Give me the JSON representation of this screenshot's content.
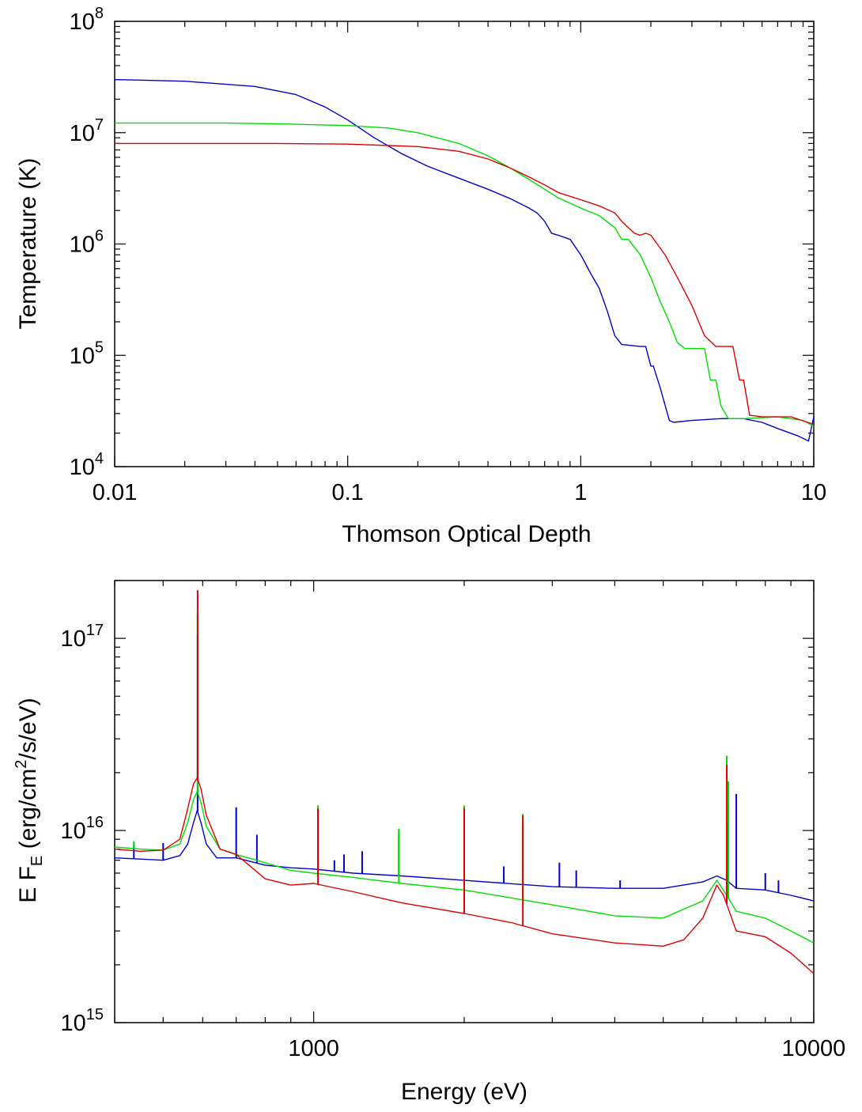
{
  "chart_data": [
    {
      "type": "line",
      "xlabel": "Thomson Optical Depth",
      "ylabel": "Temperature (K)",
      "xscale": "log",
      "yscale": "log",
      "xlim": [
        0.01,
        10
      ],
      "ylim": [
        10000,
        100000000
      ],
      "x_ticks": [
        {
          "value": 0.01,
          "label": "0.01"
        },
        {
          "value": 0.1,
          "label": "0.1"
        },
        {
          "value": 1,
          "label": "1"
        },
        {
          "value": 10,
          "label": "10"
        }
      ],
      "y_ticks": [
        {
          "value": 10000,
          "base": "10",
          "exp": "4"
        },
        {
          "value": 100000,
          "base": "10",
          "exp": "5"
        },
        {
          "value": 1000000,
          "base": "10",
          "exp": "6"
        },
        {
          "value": 10000000,
          "base": "10",
          "exp": "7"
        },
        {
          "value": 100000000,
          "base": "10",
          "exp": "8"
        }
      ],
      "grid": false,
      "legend": "none",
      "series": [
        {
          "color": "#0000cc",
          "points": [
            [
              0.01,
              30000000.0
            ],
            [
              0.02,
              29000000.0
            ],
            [
              0.04,
              26000000.0
            ],
            [
              0.06,
              22000000.0
            ],
            [
              0.08,
              17000000.0
            ],
            [
              0.1,
              13000000.0
            ],
            [
              0.13,
              9000000.0
            ],
            [
              0.17,
              6500000.0
            ],
            [
              0.22,
              5000000.0
            ],
            [
              0.3,
              3900000.0
            ],
            [
              0.4,
              3100000.0
            ],
            [
              0.5,
              2550000.0
            ],
            [
              0.6,
              2100000.0
            ],
            [
              0.65,
              1900000.0
            ],
            [
              0.7,
              1600000.0
            ],
            [
              0.75,
              1250000.0
            ],
            [
              0.8,
              1200000.0
            ],
            [
              0.9,
              1100000.0
            ],
            [
              1.0,
              800000.0
            ],
            [
              1.1,
              550000.0
            ],
            [
              1.2,
              400000.0
            ],
            [
              1.3,
              250000.0
            ],
            [
              1.4,
              150000.0
            ],
            [
              1.5,
              125000.0
            ],
            [
              1.8,
              120000.0
            ],
            [
              1.9,
              120000.0
            ],
            [
              2.0,
              80000.0
            ],
            [
              2.05,
              80000.0
            ],
            [
              2.2,
              50000.0
            ],
            [
              2.4,
              26000.0
            ],
            [
              2.5,
              25000.0
            ],
            [
              3.0,
              26000.0
            ],
            [
              4.0,
              27000.0
            ],
            [
              5.0,
              27000.0
            ],
            [
              6.0,
              25000.0
            ],
            [
              7.0,
              22000.0
            ],
            [
              8.5,
              19000.0
            ],
            [
              9.5,
              17000.0
            ],
            [
              10,
              28000.0
            ]
          ]
        },
        {
          "color": "#00dd00",
          "points": [
            [
              0.01,
              12200000.0
            ],
            [
              0.03,
              12200000.0
            ],
            [
              0.05,
              12000000.0
            ],
            [
              0.1,
              11600000.0
            ],
            [
              0.15,
              11000000.0
            ],
            [
              0.2,
              10000000.0
            ],
            [
              0.3,
              8000000.0
            ],
            [
              0.4,
              6200000.0
            ],
            [
              0.5,
              4800000.0
            ],
            [
              0.6,
              3800000.0
            ],
            [
              0.7,
              3100000.0
            ],
            [
              0.8,
              2600000.0
            ],
            [
              1.0,
              2100000.0
            ],
            [
              1.2,
              1800000.0
            ],
            [
              1.4,
              1400000.0
            ],
            [
              1.5,
              1100000.0
            ],
            [
              1.6,
              1100000.0
            ],
            [
              1.8,
              800000.0
            ],
            [
              2.0,
              500000.0
            ],
            [
              2.2,
              300000.0
            ],
            [
              2.4,
              200000.0
            ],
            [
              2.6,
              130000.0
            ],
            [
              2.8,
              115000.0
            ],
            [
              3.2,
              115000.0
            ],
            [
              3.4,
              115000.0
            ],
            [
              3.6,
              60000.0
            ],
            [
              3.8,
              60000.0
            ],
            [
              4.0,
              35000.0
            ],
            [
              4.3,
              27000.0
            ],
            [
              5.0,
              27000.0
            ],
            [
              7.0,
              28000.0
            ],
            [
              9.0,
              26000.0
            ],
            [
              10,
              23000.0
            ]
          ]
        },
        {
          "color": "#dd0000",
          "points": [
            [
              0.01,
              8000000.0
            ],
            [
              0.05,
              8000000.0
            ],
            [
              0.1,
              7900000.0
            ],
            [
              0.2,
              7500000.0
            ],
            [
              0.3,
              6800000.0
            ],
            [
              0.4,
              5800000.0
            ],
            [
              0.5,
              4800000.0
            ],
            [
              0.6,
              4000000.0
            ],
            [
              0.7,
              3400000.0
            ],
            [
              0.8,
              2900000.0
            ],
            [
              1.0,
              2500000.0
            ],
            [
              1.2,
              2200000.0
            ],
            [
              1.4,
              1900000.0
            ],
            [
              1.5,
              1600000.0
            ],
            [
              1.6,
              1400000.0
            ],
            [
              1.7,
              1250000.0
            ],
            [
              1.8,
              1200000.0
            ],
            [
              1.9,
              1250000.0
            ],
            [
              2.0,
              1200000.0
            ],
            [
              2.3,
              800000.0
            ],
            [
              2.6,
              500000.0
            ],
            [
              3.0,
              280000.0
            ],
            [
              3.4,
              150000.0
            ],
            [
              3.8,
              120000.0
            ],
            [
              4.5,
              120000.0
            ],
            [
              4.8,
              60000.0
            ],
            [
              5.0,
              60000.0
            ],
            [
              5.3,
              29000.0
            ],
            [
              6.0,
              28000.0
            ],
            [
              8.0,
              28000.0
            ],
            [
              10,
              24000.0
            ]
          ]
        }
      ]
    },
    {
      "type": "line",
      "xlabel": "Energy (eV)",
      "ylabel_main": "E F",
      "ylabel_sub": "E",
      "ylabel_mid": " (erg/cm",
      "ylabel_sup": "2",
      "ylabel_end": "/s/eV)",
      "xscale": "log",
      "yscale": "log",
      "xlim": [
        400,
        10000
      ],
      "ylim": [
        1000000000000000.0,
        2e+17
      ],
      "x_ticks": [
        {
          "value": 1000,
          "label": "1000"
        },
        {
          "value": 10000,
          "label": "10000"
        }
      ],
      "y_ticks": [
        {
          "value": 1000000000000000.0,
          "base": "10",
          "exp": "15"
        },
        {
          "value": 1e+16,
          "base": "10",
          "exp": "16"
        },
        {
          "value": 1e+17,
          "base": "10",
          "exp": "17"
        }
      ],
      "grid": false,
      "legend": "none",
      "series": [
        {
          "color": "#0000cc",
          "continuum": [
            [
              400,
              7200000000000000.0
            ],
            [
              450,
              7100000000000000.0
            ],
            [
              500,
              7000000000000000.0
            ],
            [
              540,
              7400000000000000.0
            ],
            [
              560,
              8500000000000000.0
            ],
            [
              575,
              1.1e+16
            ],
            [
              585,
              1.27e+16
            ],
            [
              595,
              1.1e+16
            ],
            [
              610,
              8500000000000000.0
            ],
            [
              640,
              7200000000000000.0
            ],
            [
              700,
              7200000000000000.0
            ],
            [
              800,
              6600000000000000.0
            ],
            [
              900,
              6400000000000000.0
            ],
            [
              1000,
              6300000000000000.0
            ],
            [
              1200,
              6000000000000000.0
            ],
            [
              1500,
              5800000000000000.0
            ],
            [
              2000,
              5500000000000000.0
            ],
            [
              3000,
              5100000000000000.0
            ],
            [
              4000,
              5000000000000000.0
            ],
            [
              5000,
              5000000000000000.0
            ],
            [
              6000,
              5400000000000000.0
            ],
            [
              6400,
              5800000000000000.0
            ],
            [
              6700,
              5500000000000000.0
            ],
            [
              7000,
              5000000000000000.0
            ],
            [
              8000,
              4900000000000000.0
            ],
            [
              9000,
              4600000000000000.0
            ],
            [
              10000,
              4300000000000000.0
            ]
          ],
          "lines": [
            [
              437,
              8500000000000000.0
            ],
            [
              500,
              8600000000000000.0
            ],
            [
              586,
              1.05e+17
            ],
            [
              700,
              1.32e+16
            ],
            [
              770,
              9500000000000000.0
            ],
            [
              1020,
              1.32e+16
            ],
            [
              1100,
              7000000000000000.0
            ],
            [
              1150,
              7500000000000000.0
            ],
            [
              1250,
              7800000000000000.0
            ],
            [
              1480,
              9500000000000000.0
            ],
            [
              2000,
              9000000000000000.0
            ],
            [
              2400,
              6500000000000000.0
            ],
            [
              2620,
              1.05e+16
            ],
            [
              3100,
              6800000000000000.0
            ],
            [
              3350,
              6200000000000000.0
            ],
            [
              4100,
              5500000000000000.0
            ],
            [
              6700,
              1.45e+16
            ],
            [
              6750,
              1.1e+16
            ],
            [
              7000,
              1.55e+16
            ],
            [
              8000,
              6000000000000000.0
            ],
            [
              8500,
              5500000000000000.0
            ]
          ]
        },
        {
          "color": "#00dd00",
          "continuum": [
            [
              400,
              8200000000000000.0
            ],
            [
              450,
              8000000000000000.0
            ],
            [
              500,
              7900000000000000.0
            ],
            [
              540,
              8500000000000000.0
            ],
            [
              560,
              1.1e+16
            ],
            [
              575,
              1.45e+16
            ],
            [
              585,
              1.6e+16
            ],
            [
              595,
              1.4e+16
            ],
            [
              610,
              1.05e+16
            ],
            [
              650,
              8000000000000000.0
            ],
            [
              700,
              7500000000000000.0
            ],
            [
              800,
              6800000000000000.0
            ],
            [
              900,
              6200000000000000.0
            ],
            [
              1000,
              6000000000000000.0
            ],
            [
              1200,
              5700000000000000.0
            ],
            [
              1500,
              5300000000000000.0
            ],
            [
              2000,
              4900000000000000.0
            ],
            [
              3000,
              4100000000000000.0
            ],
            [
              4000,
              3600000000000000.0
            ],
            [
              5000,
              3500000000000000.0
            ],
            [
              6000,
              4300000000000000.0
            ],
            [
              6400,
              5500000000000000.0
            ],
            [
              6700,
              4600000000000000.0
            ],
            [
              7000,
              3800000000000000.0
            ],
            [
              8000,
              3500000000000000.0
            ],
            [
              9000,
              3000000000000000.0
            ],
            [
              10000,
              2600000000000000.0
            ]
          ],
          "lines": [
            [
              437,
              8800000000000000.0
            ],
            [
              586,
              1.35e+17
            ],
            [
              1020,
              1.35e+16
            ],
            [
              1480,
              1.02e+16
            ],
            [
              2000,
              1.35e+16
            ],
            [
              2620,
              1.22e+16
            ],
            [
              6700,
              2.45e+16
            ],
            [
              6750,
              1.8e+16
            ]
          ]
        },
        {
          "color": "#dd0000",
          "continuum": [
            [
              400,
              8000000000000000.0
            ],
            [
              450,
              7800000000000000.0
            ],
            [
              500,
              7900000000000000.0
            ],
            [
              540,
              9000000000000000.0
            ],
            [
              560,
              1.3e+16
            ],
            [
              575,
              1.75e+16
            ],
            [
              585,
              1.88e+16
            ],
            [
              595,
              1.65e+16
            ],
            [
              610,
              1.2e+16
            ],
            [
              650,
              8000000000000000.0
            ],
            [
              700,
              7500000000000000.0
            ],
            [
              800,
              5600000000000000.0
            ],
            [
              900,
              5200000000000000.0
            ],
            [
              1000,
              5300000000000000.0
            ],
            [
              1200,
              4800000000000000.0
            ],
            [
              1500,
              4200000000000000.0
            ],
            [
              2000,
              3700000000000000.0
            ],
            [
              2500,
              3300000000000000.0
            ],
            [
              3000,
              2900000000000000.0
            ],
            [
              4000,
              2600000000000000.0
            ],
            [
              5000,
              2500000000000000.0
            ],
            [
              5500,
              2700000000000000.0
            ],
            [
              6000,
              3500000000000000.0
            ],
            [
              6400,
              5200000000000000.0
            ],
            [
              6600,
              4600000000000000.0
            ],
            [
              7000,
              3000000000000000.0
            ],
            [
              8000,
              2800000000000000.0
            ],
            [
              9000,
              2300000000000000.0
            ],
            [
              10000,
              1800000000000000.0
            ]
          ],
          "lines": [
            [
              586,
              1.78e+17
            ],
            [
              1020,
              1.3e+16
            ],
            [
              2000,
              1.3e+16
            ],
            [
              2620,
              1.2e+16
            ],
            [
              6700,
              2.2e+16
            ]
          ]
        }
      ]
    }
  ]
}
